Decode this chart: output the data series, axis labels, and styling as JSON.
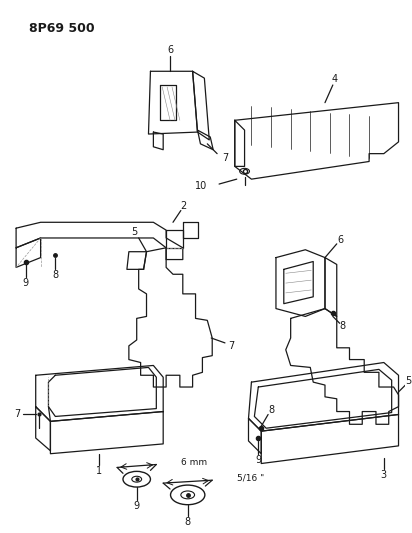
{
  "title": "8P69 500",
  "background_color": "#ffffff",
  "line_color": "#1a1a1a",
  "fig_width": 4.12,
  "fig_height": 5.33,
  "dpi": 100
}
